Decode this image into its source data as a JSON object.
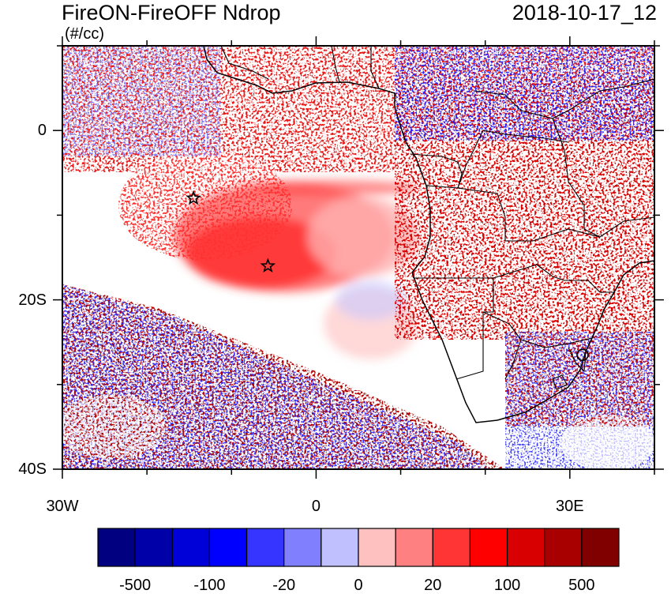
{
  "header": {
    "title": "FireON-FireOFF Ndrop",
    "units": "(#/cc)",
    "datetime": "2018-10-17_12"
  },
  "map": {
    "lon_range": [
      -30,
      40
    ],
    "lat_range": [
      -40,
      10
    ],
    "y_ticks": [
      {
        "lat": 0,
        "label": "0"
      },
      {
        "lat": -20,
        "label": "20S"
      },
      {
        "lat": -40,
        "label": "40S"
      }
    ],
    "x_ticks": [
      {
        "lon": -30,
        "label": "30W"
      },
      {
        "lon": 0,
        "label": "0"
      },
      {
        "lon": 30,
        "label": "30E"
      }
    ],
    "markers": [
      {
        "name": "star-marker-1",
        "lon": -14.5,
        "lat": -8
      },
      {
        "name": "star-marker-2",
        "lon": -5.7,
        "lat": -16
      },
      {
        "name": "circle-marker-1",
        "lon": 31.5,
        "lat": -26.5
      }
    ]
  },
  "colorbar": {
    "colors": [
      "#000080",
      "#0000a8",
      "#0000d8",
      "#0000ff",
      "#3535ff",
      "#8080ff",
      "#c0c0ff",
      "#ffc0c0",
      "#ff8080",
      "#ff3535",
      "#ff0000",
      "#d80000",
      "#a80000",
      "#800000"
    ],
    "labels": [
      "-500",
      "-100",
      "-20",
      "0",
      "20",
      "100",
      "500"
    ]
  }
}
